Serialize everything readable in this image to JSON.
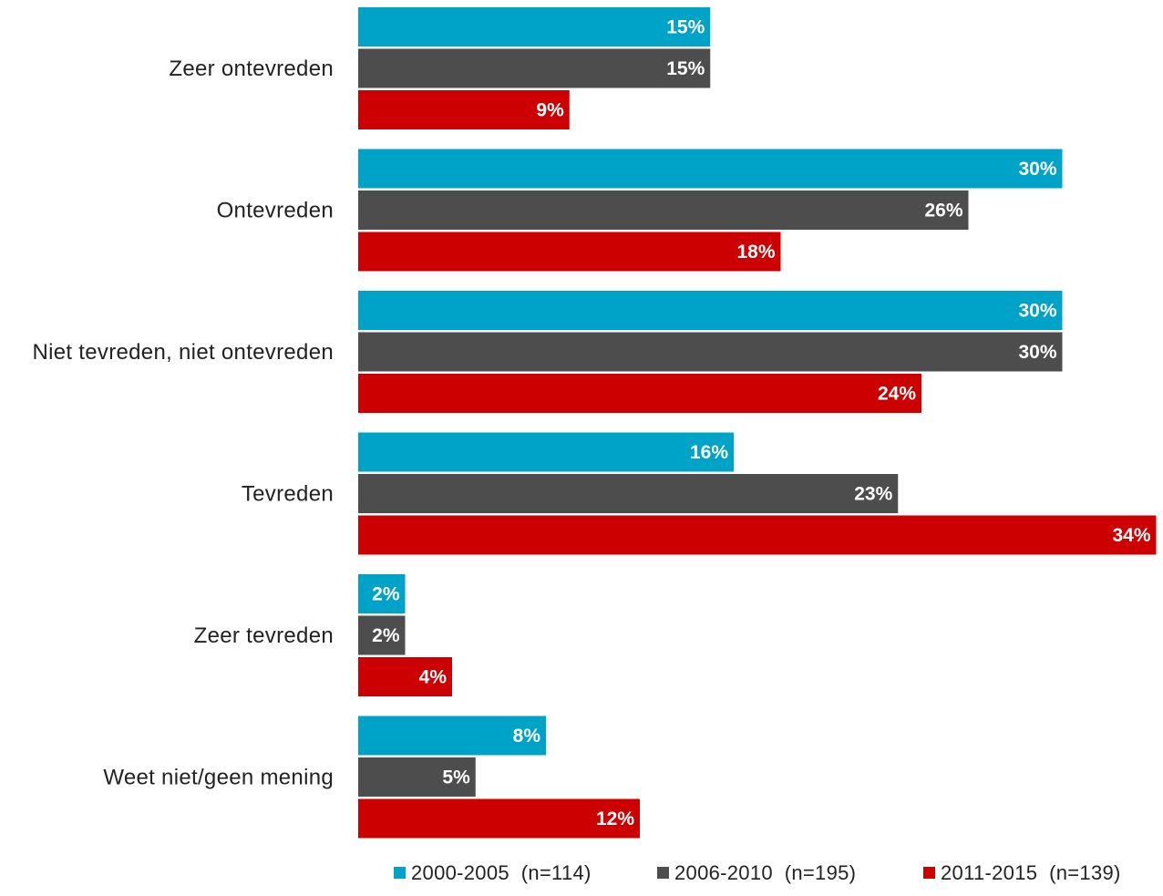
{
  "chart_data": {
    "type": "bar",
    "orientation": "horizontal",
    "categories": [
      "Zeer ontevreden",
      "Ontevreden",
      "Niet tevreden, niet ontevreden",
      "Tevreden",
      "Zeer tevreden",
      "Weet niet/geen mening"
    ],
    "series": [
      {
        "name": "2000-2005  (n=114)",
        "color": "#00A3C8",
        "values": [
          15,
          30,
          30,
          16,
          2,
          8
        ]
      },
      {
        "name": "2006-2010  (n=195)",
        "color": "#4D4D4D",
        "values": [
          15,
          26,
          30,
          23,
          2,
          5
        ]
      },
      {
        "name": "2011-2015  (n=139)",
        "color": "#CC0000",
        "values": [
          9,
          18,
          24,
          34,
          4,
          12
        ]
      }
    ],
    "value_suffix": "%",
    "data_labels": [
      [
        "15%",
        "30%",
        "30%",
        "16%",
        "2%",
        "8%"
      ],
      [
        "15%",
        "26%",
        "30%",
        "23%",
        "2%",
        "5%"
      ],
      [
        "9%",
        "18%",
        "24%",
        "34%",
        "4%",
        "12%"
      ]
    ],
    "xlim": [
      0,
      34
    ],
    "grid": false,
    "legend_position": "bottom-right",
    "title": "",
    "xlabel": "",
    "ylabel": ""
  }
}
